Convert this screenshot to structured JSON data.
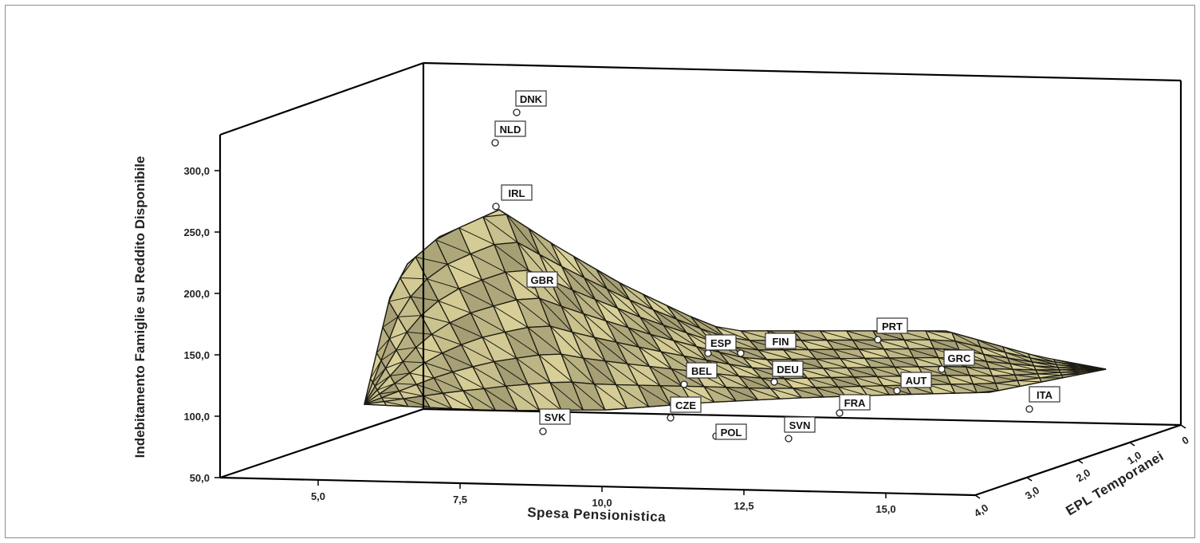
{
  "chart_data": {
    "type": "3d-surface-scatter",
    "title": "",
    "xlabel": "Spesa Pensionistica",
    "ylabel": "Indebitamento Famiglie su Reddito Disponibile",
    "zlabel": "EPL Temporanei",
    "x_ticks": [
      "5,0",
      "7,5",
      "10,0",
      "12,5",
      "15,0"
    ],
    "y_ticks": [
      "50,0",
      "100,0",
      "150,0",
      "200,0",
      "250,0",
      "300,0"
    ],
    "z_ticks": [
      "0",
      "1,0",
      "2,0",
      "3,0",
      "4,0"
    ],
    "ylim": [
      50,
      300
    ],
    "surface_color": "#d8cf98",
    "points": [
      {
        "label": "DNK"
      },
      {
        "label": "NLD"
      },
      {
        "label": "IRL"
      },
      {
        "label": "GBR"
      },
      {
        "label": "ESP"
      },
      {
        "label": "FIN"
      },
      {
        "label": "PRT"
      },
      {
        "label": "BEL"
      },
      {
        "label": "DEU"
      },
      {
        "label": "GRC"
      },
      {
        "label": "AUT"
      },
      {
        "label": "ITA"
      },
      {
        "label": "FRA"
      },
      {
        "label": "CZE"
      },
      {
        "label": "SVK"
      },
      {
        "label": "SVN"
      },
      {
        "label": "POL"
      }
    ]
  }
}
